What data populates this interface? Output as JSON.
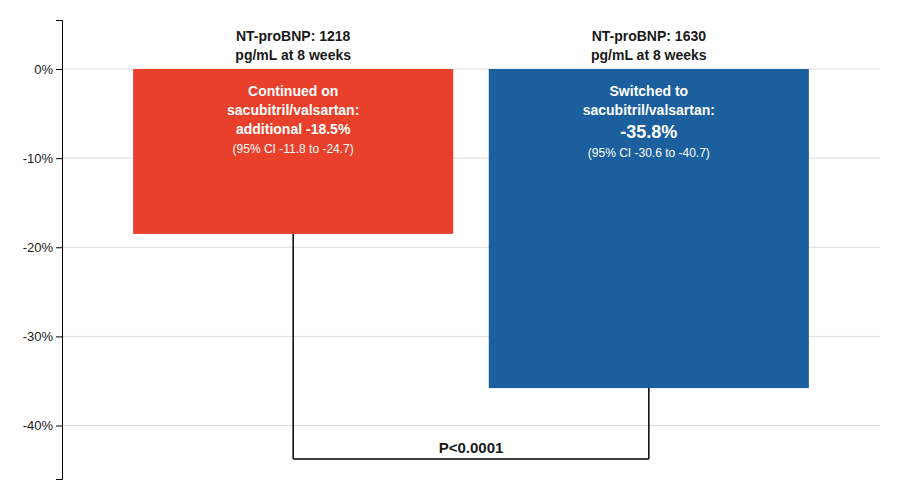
{
  "chart_data": {
    "type": "bar",
    "categories": [
      null,
      null
    ],
    "values": [
      -18.5,
      -35.8
    ],
    "colors": [
      "#E8402A",
      "#1B5F9E"
    ],
    "ylim": [
      -46,
      5.5
    ],
    "yticks": [
      {
        "value": 0,
        "label": "0%"
      },
      {
        "value": -10,
        "label": "-10%"
      },
      {
        "value": -20,
        "label": "-20%"
      },
      {
        "value": -30,
        "label": "-30%"
      },
      {
        "value": -40,
        "label": "-40%"
      }
    ],
    "grid": true,
    "tick_labels": "y",
    "annotations": {
      "headers": [
        [
          "NT-proBNP: 1218",
          "pg/mL at 8 weeks"
        ],
        [
          "NT-proBNP: 1630",
          "pg/mL at 8 weeks"
        ]
      ],
      "labels": [
        [
          "Continued on",
          "sacubitril/valsartan:",
          "additional -18.5%",
          "(95% CI -11.8 to -24.7)"
        ],
        [
          "Switched to",
          "sacubitril/valsartan:",
          "-35.8%",
          "(95% CI -30.6 to -40.7)"
        ]
      ],
      "pvalue": "P<0.0001"
    }
  }
}
